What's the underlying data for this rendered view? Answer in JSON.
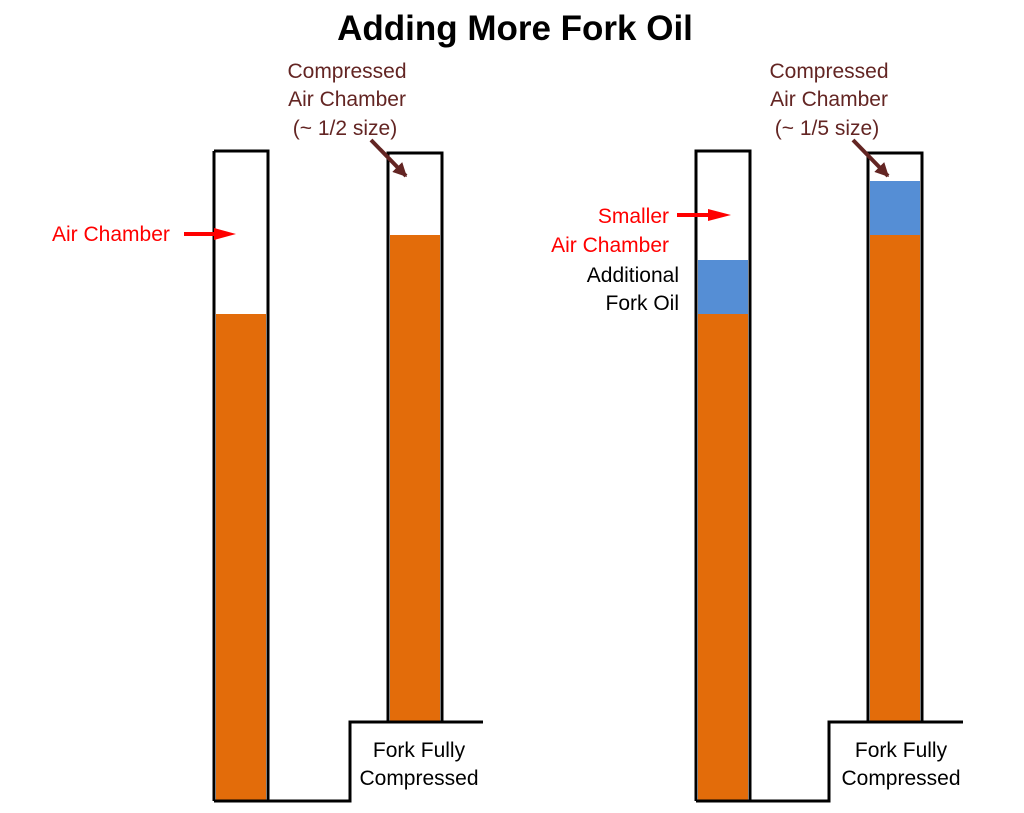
{
  "title": "Adding More Fork Oil",
  "colors": {
    "oil": "#E36C0A",
    "additional_oil": "#558ED5",
    "label_red": "#FF0000",
    "label_maroon": "#632523"
  },
  "left_panel": {
    "air_chamber_label": "Air Chamber",
    "compressed_label": [
      "Compressed",
      "Air Chamber",
      "(~ 1/2 size)"
    ],
    "fork_label": [
      "Fork Fully",
      "Compressed"
    ]
  },
  "right_panel": {
    "smaller_label": [
      "Smaller",
      "Air Chamber"
    ],
    "additional_label": [
      "Additional",
      "Fork Oil"
    ],
    "compressed_label": [
      "Compressed",
      "Air Chamber",
      "(~ 1/5 size)"
    ],
    "fork_label": [
      "Fork Fully",
      "Compressed"
    ]
  }
}
